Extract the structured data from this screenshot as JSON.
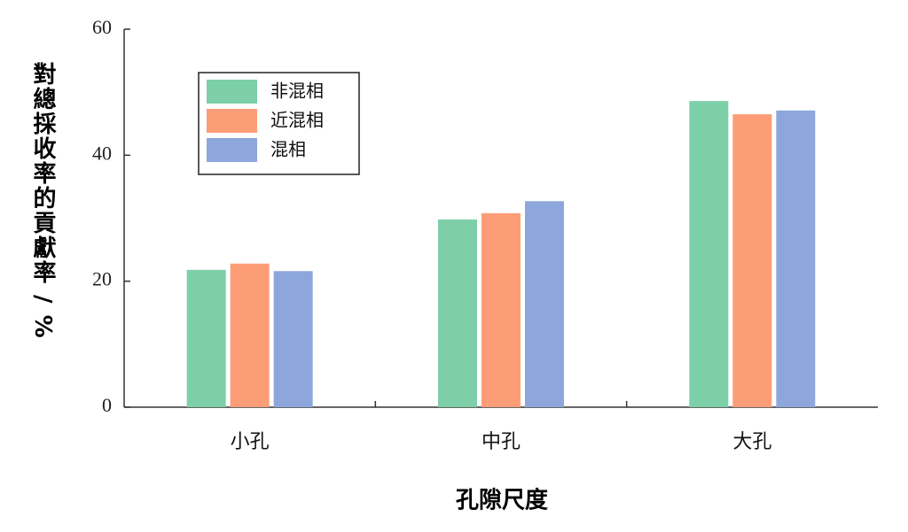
{
  "chart_data": {
    "type": "bar",
    "x_label": "孔隙尺度",
    "y_label": "對總採收率的貢獻率 / %",
    "categories": [
      "小孔",
      "中孔",
      "大孔"
    ],
    "series": [
      {
        "name": "非混相",
        "color": "#7dcfa8",
        "values": [
          21.8,
          29.8,
          48.6
        ]
      },
      {
        "name": "近混相",
        "color": "#fc9d78",
        "values": [
          22.8,
          30.8,
          46.5
        ]
      },
      {
        "name": "混相",
        "color": "#8da7dc",
        "values": [
          21.6,
          32.7,
          47.1
        ]
      }
    ],
    "ylim": [
      0,
      60
    ],
    "yticks": [
      0,
      20,
      40,
      60
    ],
    "legend": "upper left"
  }
}
